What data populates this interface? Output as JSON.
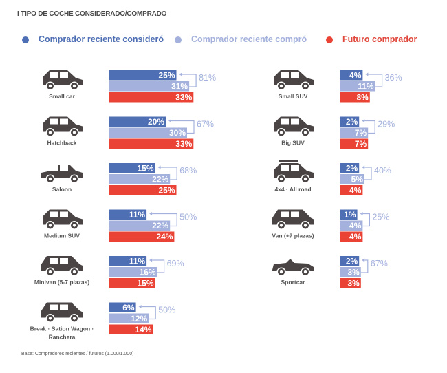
{
  "chart_data": {
    "type": "bar",
    "orientation": "horizontal",
    "title": "I TIPO DE COCHE CONSIDERADO/COMPRADO",
    "footnote": "Base: Compradores recientes / futuros (1.000/1.000)",
    "series": [
      {
        "key": "considered",
        "name": "Comprador reciente consideró",
        "color": "#4f6fb5",
        "text_color": "#4f6fb5"
      },
      {
        "key": "bought",
        "name": "Comprador reciente compró",
        "color": "#a3b1dc",
        "text_color": "#a3b1dc"
      },
      {
        "key": "future",
        "name": "Futuro comprador",
        "color": "#ea4335",
        "text_color": "#e0463a"
      }
    ],
    "conversion_color": "#a3b1dc",
    "value_suffix": "%",
    "groups": [
      {
        "column": "left",
        "category": "Small car",
        "icon": "small-car-icon",
        "considered": 25,
        "bought": 31,
        "future": 33,
        "conversion": 81
      },
      {
        "column": "left",
        "category": "Hatchback",
        "icon": "hatchback-icon",
        "considered": 20,
        "bought": 30,
        "future": 33,
        "conversion": 67
      },
      {
        "column": "left",
        "category": "Saloon",
        "icon": "saloon-icon",
        "considered": 15,
        "bought": 22,
        "future": 25,
        "conversion": 68
      },
      {
        "column": "left",
        "category": "Medium SUV",
        "icon": "medium-suv-icon",
        "considered": 11,
        "bought": 22,
        "future": 24,
        "conversion": 50
      },
      {
        "column": "left",
        "category": "Minivan (5-7 plazas)",
        "icon": "minivan-icon",
        "considered": 11,
        "bought": 16,
        "future": 15,
        "conversion": 69
      },
      {
        "column": "left",
        "category": "Break · Sation Wagon · Ranchera",
        "category_lines": [
          "Break · Sation Wagon ·",
          "Ranchera"
        ],
        "icon": "station-wagon-icon",
        "considered": 6,
        "bought": 12,
        "future": 14,
        "conversion": 50
      },
      {
        "column": "right",
        "category": "Small SUV",
        "icon": "small-suv-icon",
        "considered": 4,
        "bought": 11,
        "future": 8,
        "conversion": 36
      },
      {
        "column": "right",
        "category": "Big SUV",
        "icon": "big-suv-icon",
        "considered": 2,
        "bought": 7,
        "future": 7,
        "conversion": 29
      },
      {
        "column": "right",
        "category": "4x4 · All road",
        "icon": "four-by-four-icon",
        "considered": 2,
        "bought": 5,
        "future": 4,
        "conversion": 40
      },
      {
        "column": "right",
        "category": "Van (+7 plazas)",
        "icon": "van-icon",
        "considered": 1,
        "bought": 4,
        "future": 4,
        "conversion": 25
      },
      {
        "column": "right",
        "category": "Sportcar",
        "icon": "sportcar-icon",
        "considered": 2,
        "bought": 3,
        "future": 3,
        "conversion": 67
      }
    ]
  }
}
